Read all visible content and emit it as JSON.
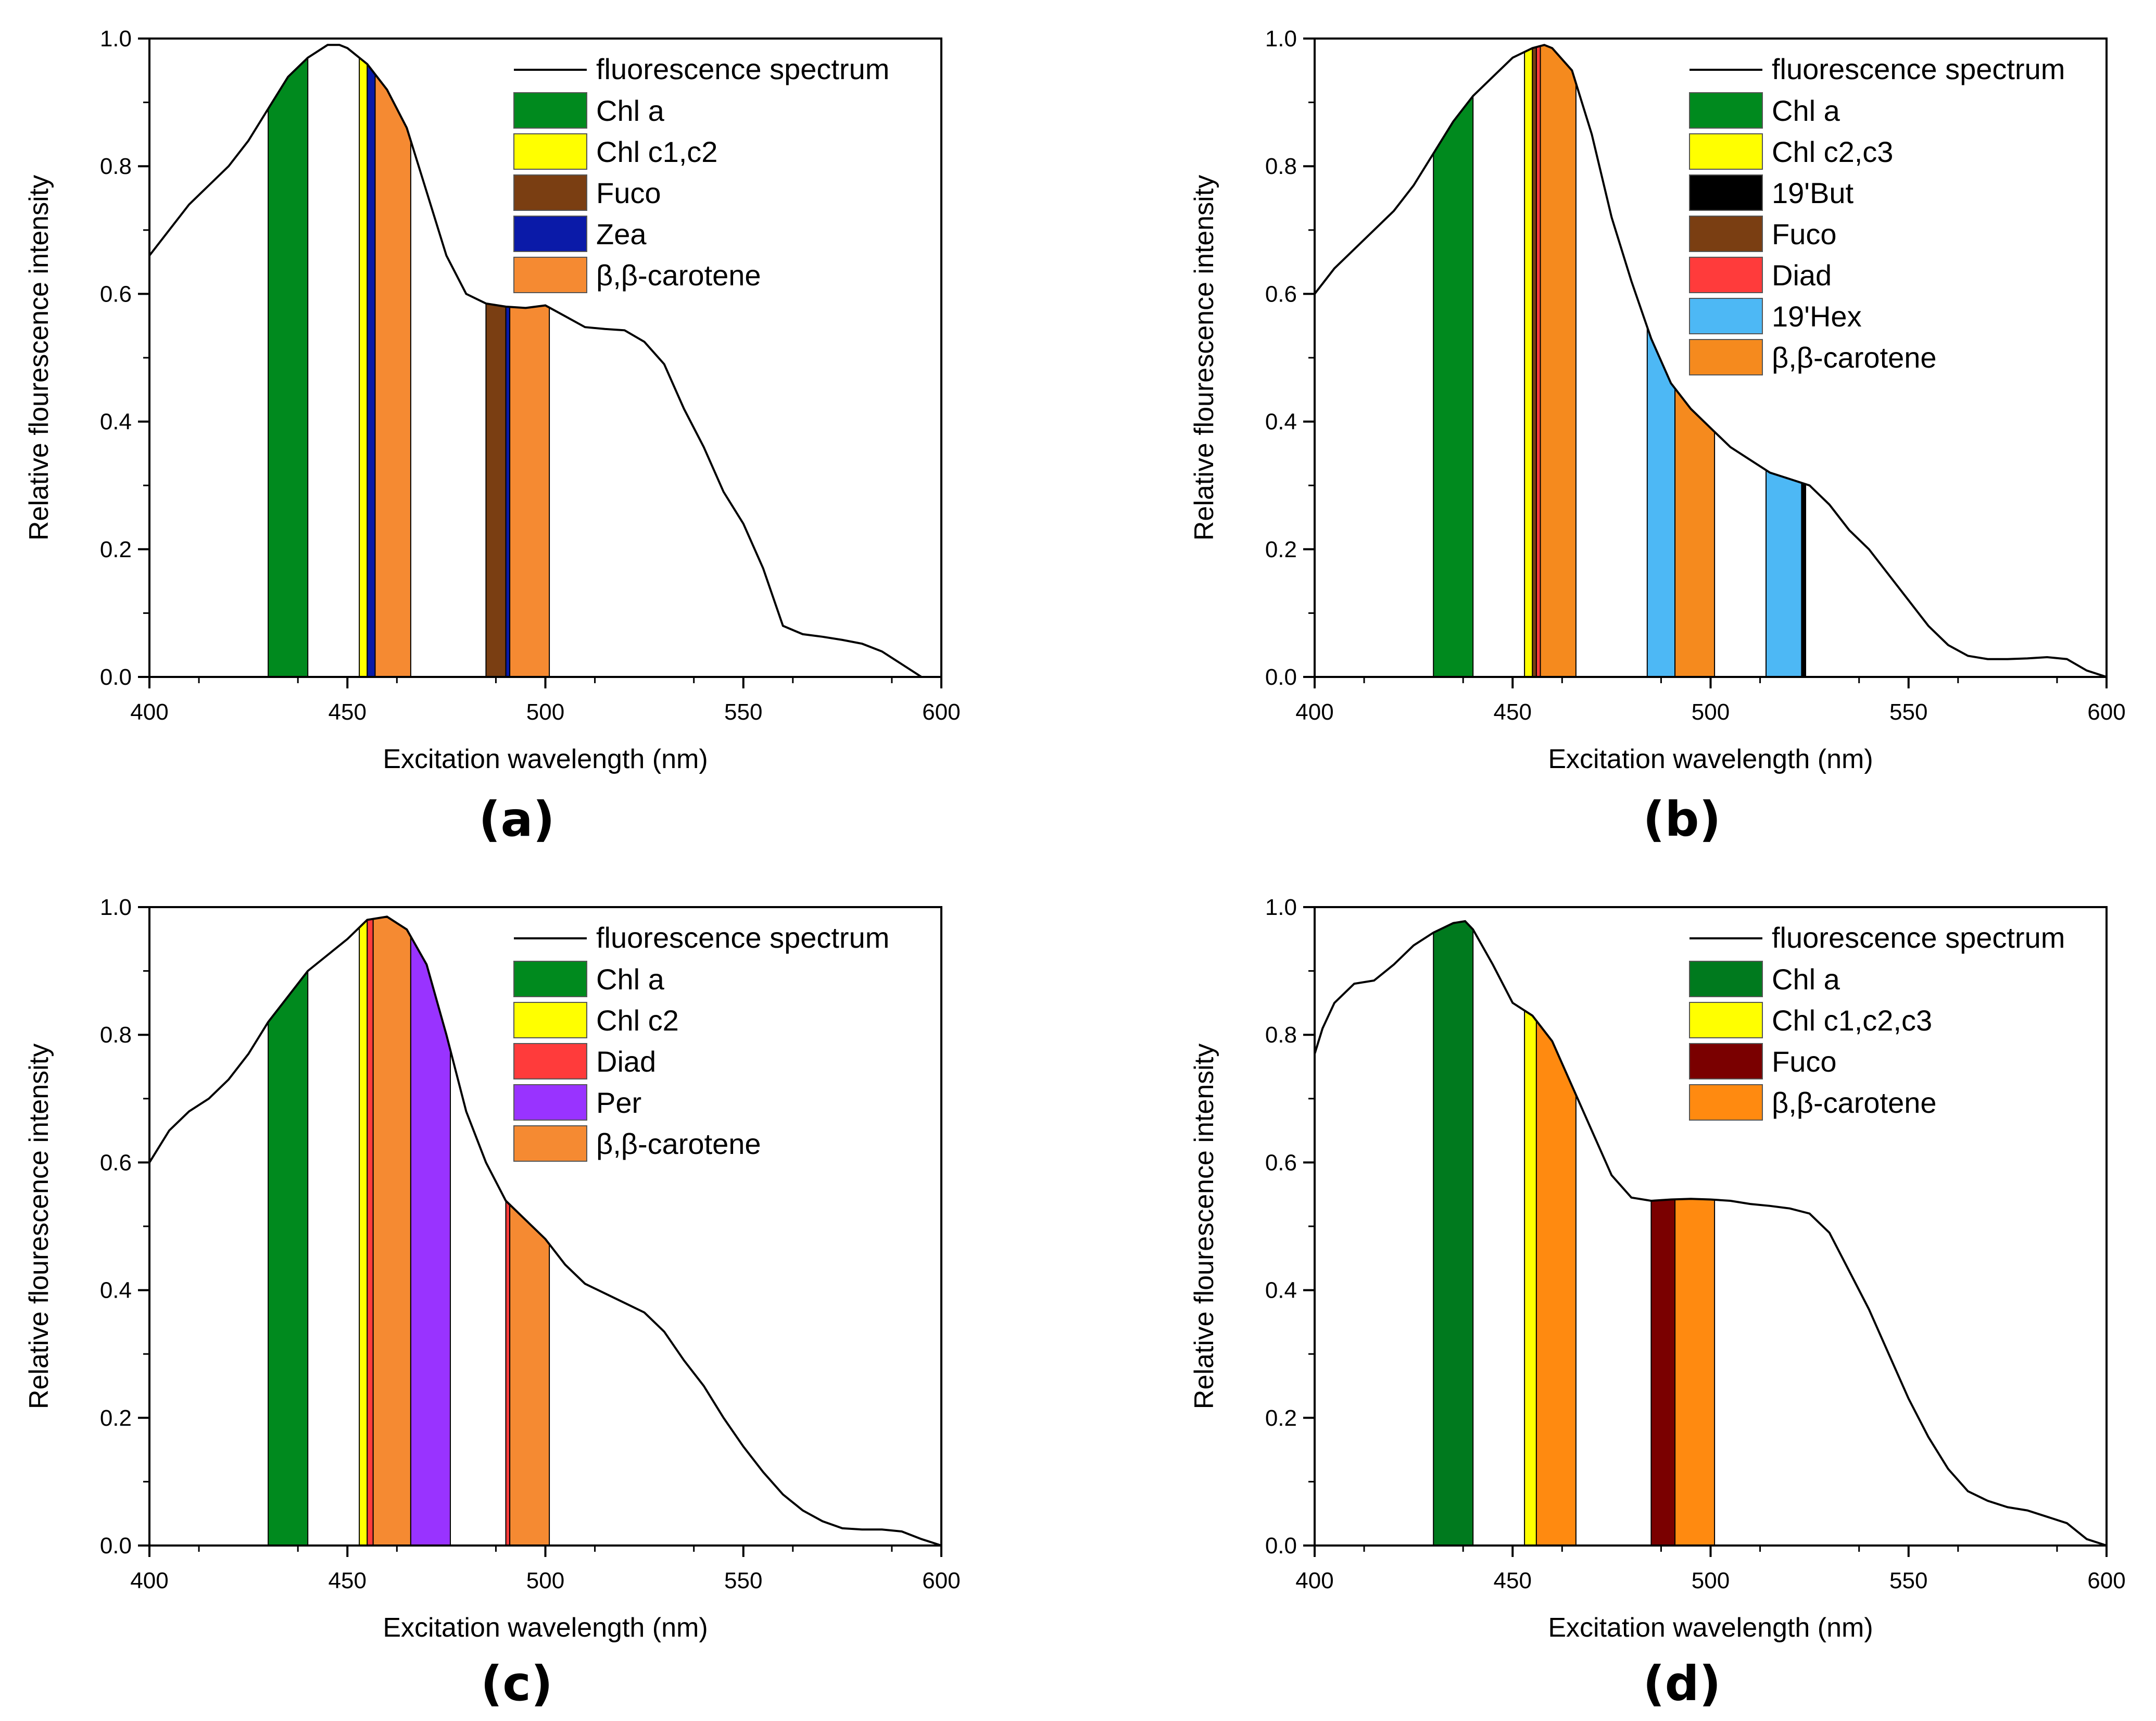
{
  "figure": {
    "panels": [
      "(a)",
      "(b)",
      "(c)",
      "(d)"
    ]
  },
  "chart_data": [
    {
      "type": "area",
      "panel_label": "(a)",
      "xlabel": "Excitation wavelength (nm)",
      "ylabel": "Relative flourescence intensity",
      "xlim": [
        400,
        600
      ],
      "ylim": [
        0,
        1.0
      ],
      "x_ticks": [
        "400",
        "450",
        "500",
        "550",
        "600"
      ],
      "y_ticks": [
        "0.0",
        "0.2",
        "0.4",
        "0.6",
        "0.8",
        "1.0"
      ],
      "line_label": "fluorescence spectrum",
      "spectrum": {
        "x": [
          400,
          405,
          410,
          415,
          420,
          425,
          430,
          435,
          440,
          445,
          448,
          450,
          455,
          460,
          465,
          470,
          475,
          480,
          485,
          490,
          495,
          500,
          505,
          510,
          515,
          520,
          525,
          530,
          535,
          540,
          545,
          550,
          555,
          560,
          565,
          570,
          575,
          580,
          585,
          590,
          595,
          600
        ],
        "y": [
          0.66,
          0.7,
          0.74,
          0.77,
          0.8,
          0.84,
          0.89,
          0.94,
          0.97,
          0.99,
          0.99,
          0.985,
          0.96,
          0.92,
          0.86,
          0.76,
          0.66,
          0.6,
          0.585,
          0.58,
          0.578,
          0.582,
          0.565,
          0.548,
          0.545,
          0.543,
          0.525,
          0.49,
          0.42,
          0.36,
          0.29,
          0.24,
          0.17,
          0.08,
          0.067,
          0.063,
          0.058,
          0.052,
          0.04,
          0.02,
          0.0,
          0.0
        ]
      },
      "legend": [
        {
          "name": "Chl a",
          "color": "#008a1e"
        },
        {
          "name": "Chl c1,c2",
          "color": "#ffff00"
        },
        {
          "name": "Fuco",
          "color": "#7a3e12"
        },
        {
          "name": "Zea",
          "color": "#0a1aa8"
        },
        {
          "name": "β,β-carotene",
          "color": "#f58a32"
        }
      ],
      "bands": [
        {
          "name": "Chl a",
          "x0": 430,
          "x1": 440,
          "color": "#008a1e"
        },
        {
          "name": "Chl c1,c2",
          "x0": 453,
          "x1": 455,
          "color": "#ffff00"
        },
        {
          "name": "Zea",
          "x0": 455,
          "x1": 457,
          "color": "#0a1aa8"
        },
        {
          "name": "β,β-carotene",
          "x0": 457,
          "x1": 466,
          "color": "#f58a32"
        },
        {
          "name": "Fuco",
          "x0": 485,
          "x1": 490,
          "color": "#7a3e12"
        },
        {
          "name": "Zea",
          "x0": 490,
          "x1": 491,
          "color": "#0a1aa8"
        },
        {
          "name": "β,β-carotene",
          "x0": 491,
          "x1": 501,
          "color": "#f58a32"
        }
      ]
    },
    {
      "type": "area",
      "panel_label": "(b)",
      "xlabel": "Excitation wavelength (nm)",
      "ylabel": "Relative flourescence intensity",
      "xlim": [
        400,
        600
      ],
      "ylim": [
        0,
        1.0
      ],
      "x_ticks": [
        "400",
        "450",
        "500",
        "550",
        "600"
      ],
      "y_ticks": [
        "0.0",
        "0.2",
        "0.4",
        "0.6",
        "0.8",
        "1.0"
      ],
      "line_label": "fluorescence spectrum",
      "spectrum": {
        "x": [
          400,
          405,
          410,
          415,
          420,
          425,
          430,
          435,
          440,
          445,
          450,
          455,
          458,
          460,
          465,
          470,
          475,
          480,
          485,
          490,
          495,
          500,
          505,
          510,
          515,
          520,
          525,
          530,
          535,
          540,
          545,
          550,
          555,
          560,
          565,
          570,
          575,
          580,
          585,
          590,
          595,
          600
        ],
        "y": [
          0.6,
          0.64,
          0.67,
          0.7,
          0.73,
          0.77,
          0.82,
          0.87,
          0.91,
          0.94,
          0.97,
          0.985,
          0.99,
          0.985,
          0.95,
          0.85,
          0.72,
          0.62,
          0.53,
          0.46,
          0.42,
          0.39,
          0.36,
          0.34,
          0.32,
          0.31,
          0.3,
          0.27,
          0.23,
          0.2,
          0.16,
          0.12,
          0.08,
          0.05,
          0.033,
          0.028,
          0.028,
          0.029,
          0.031,
          0.028,
          0.01,
          0.0
        ]
      },
      "legend": [
        {
          "name": "Chl a",
          "color": "#008a1e"
        },
        {
          "name": "Chl c2,c3",
          "color": "#ffff00"
        },
        {
          "name": "19'But",
          "color": "#000000"
        },
        {
          "name": "Fuco",
          "color": "#7a3e12"
        },
        {
          "name": "Diad",
          "color": "#ff3b3b"
        },
        {
          "name": "19'Hex",
          "color": "#4db8f5"
        },
        {
          "name": "β,β-carotene",
          "color": "#f58a1e"
        }
      ],
      "bands": [
        {
          "name": "Chl a",
          "x0": 430,
          "x1": 440,
          "color": "#008a1e"
        },
        {
          "name": "Chl c2,c3",
          "x0": 453,
          "x1": 455,
          "color": "#ffff00"
        },
        {
          "name": "Fuco",
          "x0": 455,
          "x1": 456,
          "color": "#7a3e12"
        },
        {
          "name": "Diad",
          "x0": 456,
          "x1": 457,
          "color": "#ff3b3b"
        },
        {
          "name": "β,β-carotene",
          "x0": 457,
          "x1": 466,
          "color": "#f58a1e"
        },
        {
          "name": "19'Hex",
          "x0": 484,
          "x1": 491,
          "color": "#4db8f5"
        },
        {
          "name": "β,β-carotene",
          "x0": 491,
          "x1": 501,
          "color": "#f58a1e"
        },
        {
          "name": "19'Hex",
          "x0": 514,
          "x1": 523,
          "color": "#4db8f5"
        },
        {
          "name": "19'But",
          "x0": 523,
          "x1": 524,
          "color": "#000000"
        }
      ]
    },
    {
      "type": "area",
      "panel_label": "(c)",
      "xlabel": "Excitation wavelength (nm)",
      "ylabel": "Relative flourescence intensity",
      "xlim": [
        400,
        600
      ],
      "ylim": [
        0,
        1.0
      ],
      "x_ticks": [
        "400",
        "450",
        "500",
        "550",
        "600"
      ],
      "y_ticks": [
        "0.0",
        "0.2",
        "0.4",
        "0.6",
        "0.8",
        "1.0"
      ],
      "line_label": "fluorescence spectrum",
      "spectrum": {
        "x": [
          400,
          405,
          410,
          415,
          420,
          425,
          430,
          435,
          440,
          445,
          450,
          455,
          460,
          465,
          470,
          475,
          480,
          485,
          490,
          495,
          500,
          505,
          510,
          515,
          520,
          525,
          530,
          535,
          540,
          545,
          550,
          555,
          560,
          565,
          570,
          575,
          580,
          585,
          590,
          595,
          600
        ],
        "y": [
          0.6,
          0.65,
          0.68,
          0.7,
          0.73,
          0.77,
          0.82,
          0.86,
          0.9,
          0.925,
          0.95,
          0.98,
          0.985,
          0.965,
          0.91,
          0.8,
          0.68,
          0.6,
          0.54,
          0.51,
          0.48,
          0.44,
          0.41,
          0.395,
          0.38,
          0.365,
          0.335,
          0.29,
          0.25,
          0.2,
          0.155,
          0.115,
          0.08,
          0.055,
          0.038,
          0.027,
          0.025,
          0.025,
          0.022,
          0.01,
          0.0
        ]
      },
      "legend": [
        {
          "name": "Chl a",
          "color": "#008a1e"
        },
        {
          "name": "Chl c2",
          "color": "#ffff00"
        },
        {
          "name": "Diad",
          "color": "#ff3b3b"
        },
        {
          "name": "Per",
          "color": "#9933ff"
        },
        {
          "name": "β,β-carotene",
          "color": "#f58a32"
        }
      ],
      "bands": [
        {
          "name": "Chl a",
          "x0": 430,
          "x1": 440,
          "color": "#008a1e"
        },
        {
          "name": "Chl c2",
          "x0": 453,
          "x1": 455,
          "color": "#ffff00"
        },
        {
          "name": "Diad",
          "x0": 455,
          "x1": 456.5,
          "color": "#ff3b3b"
        },
        {
          "name": "β,β-carotene",
          "x0": 456.5,
          "x1": 466,
          "color": "#f58a32"
        },
        {
          "name": "Per",
          "x0": 466,
          "x1": 476,
          "color": "#9933ff"
        },
        {
          "name": "Diad",
          "x0": 490,
          "x1": 491,
          "color": "#ff3b3b"
        },
        {
          "name": "β,β-carotene",
          "x0": 491,
          "x1": 501,
          "color": "#f58a32"
        }
      ]
    },
    {
      "type": "area",
      "panel_label": "(d)",
      "xlabel": "Excitation wavelength (nm)",
      "ylabel": "Relative flourescence intensity",
      "xlim": [
        400,
        600
      ],
      "ylim": [
        0,
        1.0
      ],
      "x_ticks": [
        "400",
        "450",
        "500",
        "550",
        "600"
      ],
      "y_ticks": [
        "0.0",
        "0.2",
        "0.4",
        "0.6",
        "0.8",
        "1.0"
      ],
      "line_label": "fluorescence spectrum",
      "spectrum": {
        "x": [
          400,
          402,
          405,
          410,
          415,
          420,
          425,
          430,
          435,
          438,
          440,
          445,
          450,
          455,
          460,
          465,
          470,
          475,
          480,
          485,
          490,
          495,
          500,
          505,
          510,
          515,
          520,
          525,
          530,
          535,
          540,
          545,
          550,
          555,
          560,
          565,
          570,
          575,
          580,
          585,
          590,
          595,
          600
        ],
        "y": [
          0.77,
          0.81,
          0.85,
          0.88,
          0.885,
          0.91,
          0.94,
          0.96,
          0.975,
          0.978,
          0.965,
          0.91,
          0.85,
          0.83,
          0.79,
          0.72,
          0.65,
          0.58,
          0.545,
          0.54,
          0.542,
          0.543,
          0.542,
          0.54,
          0.535,
          0.532,
          0.528,
          0.52,
          0.49,
          0.43,
          0.37,
          0.3,
          0.23,
          0.17,
          0.12,
          0.085,
          0.07,
          0.06,
          0.055,
          0.045,
          0.035,
          0.01,
          0.0
        ]
      },
      "legend": [
        {
          "name": "Chl a",
          "color": "#007a1e"
        },
        {
          "name": "Chl c1,c2,c3",
          "color": "#ffff00"
        },
        {
          "name": "Fuco",
          "color": "#7a0000"
        },
        {
          "name": "β,β-carotene",
          "color": "#ff8a10"
        }
      ],
      "bands": [
        {
          "name": "Chl a",
          "x0": 430,
          "x1": 440,
          "color": "#007a1e"
        },
        {
          "name": "Chl c1,c2,c3",
          "x0": 453,
          "x1": 456,
          "color": "#ffff00"
        },
        {
          "name": "β,β-carotene",
          "x0": 456,
          "x1": 466,
          "color": "#ff8a10"
        },
        {
          "name": "Fuco",
          "x0": 485,
          "x1": 491,
          "color": "#7a0000"
        },
        {
          "name": "β,β-carotene",
          "x0": 491,
          "x1": 501,
          "color": "#ff8a10"
        }
      ]
    }
  ]
}
